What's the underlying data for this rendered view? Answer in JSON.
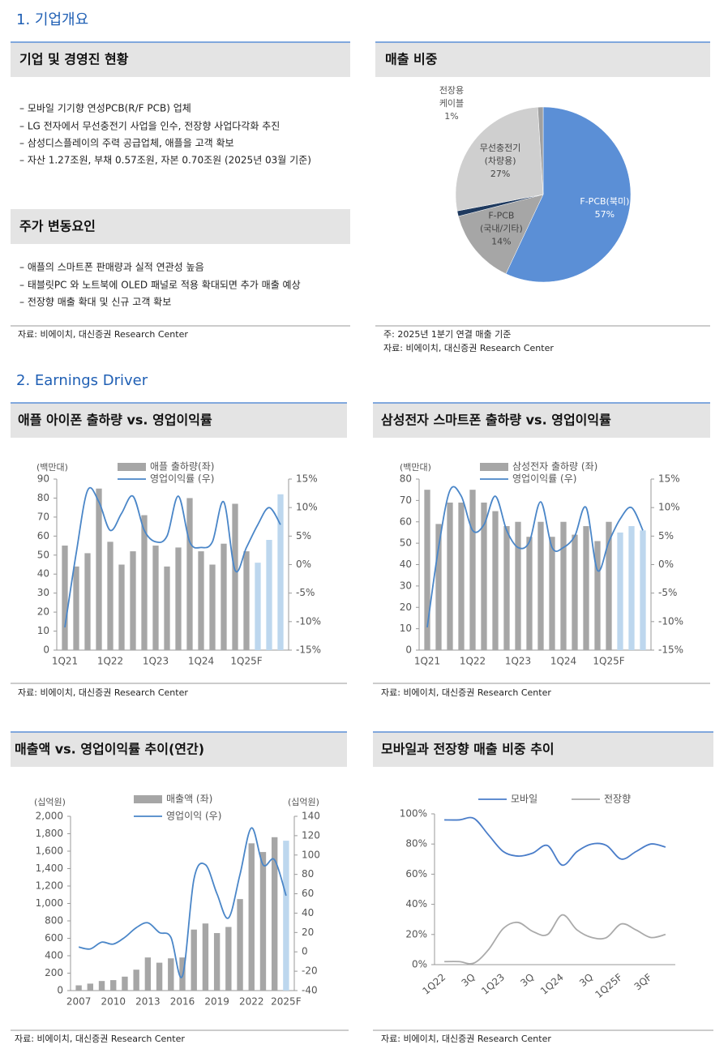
{
  "section1": {
    "title": "1. 기업개요"
  },
  "overview": {
    "title": "기업 및 경영진 현황",
    "items": [
      "–  모바일 기기향 연성PCB(R/F PCB) 업체",
      "–  LG 전자에서 무선충전기 사업을 인수, 전장향 사업다각화 추진",
      "–  삼성디스플레이의 주력 공급업체, 애플을 고객 확보",
      "–  자산 1.27조원, 부채 0.57조원, 자본 0.70조원 (2025년 03월 기준)"
    ]
  },
  "stock_factors": {
    "title": "주가 변동요인",
    "items": [
      "– 애플의 스마트폰 판매량과 실적 연관성 높음",
      "– 태블릿PC 와 노트북에 OLED 패널로 적용 확대되면 추가 매출 예상",
      "– 전장향 매출 확대 및 신규 고객 확보"
    ],
    "source": "자료: 비에이치, 대신증권 Research Center"
  },
  "section2": {
    "title": "2. Earnings Driver"
  },
  "chart_data": [
    {
      "type": "pie",
      "title": "매출 비중",
      "notes": [
        "주: 2025년 1분기 연결 매출 기준",
        "자료: 비에이치, 대신증권 Research Center"
      ],
      "categories": [
        "F-PCB(북미)",
        "F-PCB\n(국내/기타)",
        null,
        "무선충전기\n(차량용)",
        "전장용\n케이블"
      ],
      "values": [
        57,
        14,
        1,
        27,
        1
      ],
      "value_labels": [
        "57%",
        "14%",
        null,
        "27%",
        "1%"
      ],
      "colors": [
        "#5b8fd6",
        "#a6a6a6",
        "#1f3a5f",
        "#cfcfcf",
        "#a0a0a0"
      ]
    },
    {
      "type": "bar-line",
      "title": "애플 아이폰 출하량 vs. 영업이익률",
      "source": "자료: 비에이치, 대신증권 Research Center",
      "y_label": "(백만대)",
      "categories": [
        "1Q21",
        null,
        null,
        null,
        "1Q22",
        null,
        null,
        null,
        "1Q23",
        null,
        null,
        null,
        "1Q24",
        null,
        null,
        null,
        "1Q25F",
        null,
        null,
        null
      ],
      "ylim": [
        0,
        90
      ],
      "yticks": [
        0,
        10,
        20,
        30,
        40,
        50,
        60,
        70,
        80,
        90
      ],
      "y2lim": [
        -15,
        15
      ],
      "y2ticks": [
        {
          "value": 15,
          "label": "15%"
        },
        {
          "value": 10,
          "label": "10%"
        },
        {
          "value": 5,
          "label": "5%"
        },
        {
          "value": 0,
          "label": "0%"
        },
        {
          "value": -5,
          "label": "-5%"
        },
        {
          "value": -10,
          "label": "-10%"
        },
        {
          "value": -15,
          "label": "-15%"
        }
      ],
      "series": [
        {
          "name": "애플 출하량(좌)",
          "type": "bar",
          "color": "#a6a6a6",
          "values": [
            55,
            44,
            51,
            85,
            57,
            45,
            52,
            71,
            55,
            44,
            54,
            80,
            52,
            45,
            56,
            77,
            52,
            46,
            58,
            82
          ],
          "colors": [
            "#a6a6a6",
            "#a6a6a6",
            "#a6a6a6",
            "#a6a6a6",
            "#a6a6a6",
            "#a6a6a6",
            "#a6a6a6",
            "#a6a6a6",
            "#a6a6a6",
            "#a6a6a6",
            "#a6a6a6",
            "#a6a6a6",
            "#a6a6a6",
            "#a6a6a6",
            "#a6a6a6",
            "#a6a6a6",
            "#a6a6a6",
            "#bdd7ee",
            "#bdd7ee",
            "#bdd7ee"
          ]
        },
        {
          "name": "영업이익률 (우)",
          "type": "line",
          "axis": "y2",
          "color": "#4a86c8",
          "values": [
            -11,
            2,
            13,
            11,
            6,
            9,
            12,
            6,
            4,
            5,
            12,
            4,
            3,
            4,
            11,
            -1,
            3,
            7,
            10,
            7
          ]
        }
      ]
    },
    {
      "type": "bar-line",
      "title": "삼성전자 스마트폰 출하량 vs. 영업이익률",
      "source": "자료: 비에이치, 대신증권 Research Center",
      "y_label": "(백만대)",
      "categories": [
        "1Q21",
        null,
        null,
        null,
        "1Q22",
        null,
        null,
        null,
        "1Q23",
        null,
        null,
        null,
        "1Q24",
        null,
        null,
        null,
        "1Q25F",
        null,
        null,
        null
      ],
      "ylim": [
        0,
        80
      ],
      "yticks": [
        0,
        10,
        20,
        30,
        40,
        50,
        60,
        70,
        80
      ],
      "y2lim": [
        -15,
        15
      ],
      "y2ticks": [
        {
          "value": 15,
          "label": "15%"
        },
        {
          "value": 10,
          "label": "10%"
        },
        {
          "value": 5,
          "label": "5%"
        },
        {
          "value": 0,
          "label": "0%"
        },
        {
          "value": -5,
          "label": "-5%"
        },
        {
          "value": -10,
          "label": "-10%"
        },
        {
          "value": -15,
          "label": "-15%"
        }
      ],
      "series": [
        {
          "name": "삼성전자 출하량 (좌)",
          "type": "bar",
          "color": "#a6a6a6",
          "values": [
            75,
            59,
            69,
            69,
            75,
            69,
            65,
            58,
            60,
            53,
            60,
            53,
            60,
            54,
            58,
            51,
            60,
            55,
            58,
            56
          ],
          "colors": [
            "#a6a6a6",
            "#a6a6a6",
            "#a6a6a6",
            "#a6a6a6",
            "#a6a6a6",
            "#a6a6a6",
            "#a6a6a6",
            "#a6a6a6",
            "#a6a6a6",
            "#a6a6a6",
            "#a6a6a6",
            "#a6a6a6",
            "#a6a6a6",
            "#a6a6a6",
            "#a6a6a6",
            "#a6a6a6",
            "#a6a6a6",
            "#bdd7ee",
            "#bdd7ee",
            "#bdd7ee"
          ]
        },
        {
          "name": "영업이익률 (우)",
          "type": "line",
          "axis": "y2",
          "color": "#4a86c8",
          "values": [
            -11,
            3,
            13,
            12,
            6,
            7,
            12,
            6,
            3,
            4,
            11,
            3,
            3,
            5,
            10,
            -1,
            4,
            8,
            10,
            6
          ]
        }
      ]
    },
    {
      "type": "bar-line",
      "title": "매출액 vs. 영업이익률 추이(연간)",
      "source": "자료: 비에이치, 대신증권 Research Center",
      "y_label": "(십억원)",
      "y2_label": "(십억원)",
      "categories": [
        "2007",
        null,
        null,
        "2010",
        null,
        null,
        "2013",
        null,
        null,
        "2016",
        null,
        null,
        "2019",
        null,
        null,
        "2022",
        null,
        null,
        "2025F"
      ],
      "ylim": [
        0,
        2000
      ],
      "yticks": [
        0,
        200,
        400,
        600,
        800,
        {
          "value": 1000,
          "label": "1,000"
        },
        {
          "value": 1200,
          "label": "1,200"
        },
        {
          "value": 1400,
          "label": "1,400"
        },
        {
          "value": 1600,
          "label": "1,600"
        },
        {
          "value": 1800,
          "label": "1,800"
        },
        {
          "value": 2000,
          "label": "2,000"
        }
      ],
      "y2lim": [
        -40,
        140
      ],
      "y2ticks": [
        -40,
        -20,
        0,
        20,
        40,
        60,
        80,
        100,
        120,
        140
      ],
      "series": [
        {
          "name": "매출액 (좌)",
          "type": "bar",
          "color": "#a6a6a6",
          "values": [
            60,
            80,
            110,
            120,
            160,
            240,
            380,
            320,
            370,
            380,
            700,
            770,
            660,
            730,
            1050,
            1690,
            1590,
            1760,
            1720
          ],
          "colors": [
            "#a6a6a6",
            "#a6a6a6",
            "#a6a6a6",
            "#a6a6a6",
            "#a6a6a6",
            "#a6a6a6",
            "#a6a6a6",
            "#a6a6a6",
            "#a6a6a6",
            "#a6a6a6",
            "#a6a6a6",
            "#a6a6a6",
            "#a6a6a6",
            "#a6a6a6",
            "#a6a6a6",
            "#a6a6a6",
            "#a6a6a6",
            "#a6a6a6",
            "#bdd7ee"
          ]
        },
        {
          "name": "영업이익 (우)",
          "type": "line",
          "axis": "y2",
          "color": "#4a86c8",
          "values": [
            5,
            3,
            10,
            8,
            15,
            25,
            30,
            20,
            15,
            -25,
            75,
            90,
            60,
            35,
            80,
            128,
            90,
            95,
            58
          ]
        }
      ]
    },
    {
      "type": "line",
      "title": "모바일과 전장향 매출 비중 추이",
      "source": "자료: 비에이치, 대신증권 Research Center",
      "categories": [
        "1Q22",
        null,
        "3Q",
        null,
        "1Q23",
        null,
        "3Q",
        null,
        "1Q24",
        null,
        "3Q",
        null,
        "1Q25F",
        null,
        "3QF",
        null
      ],
      "ylim": [
        0,
        100
      ],
      "yticks": [
        {
          "value": 0,
          "label": "0%"
        },
        {
          "value": 20,
          "label": "20%"
        },
        {
          "value": 40,
          "label": "40%"
        },
        {
          "value": 60,
          "label": "60%"
        },
        {
          "value": 80,
          "label": "80%"
        },
        {
          "value": 100,
          "label": "100%"
        }
      ],
      "series": [
        {
          "name": "모바일",
          "type": "line",
          "color": "#4a7dc9",
          "values": [
            96,
            96,
            97,
            86,
            75,
            72,
            74,
            79,
            66,
            75,
            80,
            79,
            70,
            75,
            80,
            78
          ]
        },
        {
          "name": "전장향",
          "type": "line",
          "color": "#aaaaaa",
          "values": [
            2,
            2,
            1,
            10,
            24,
            28,
            22,
            20,
            33,
            23,
            18,
            18,
            27,
            23,
            18,
            20
          ]
        }
      ]
    }
  ]
}
